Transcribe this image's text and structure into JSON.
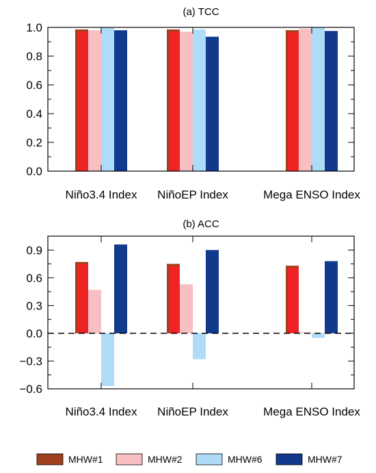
{
  "legend": [
    {
      "name": "MHW#1",
      "color": "#a0401c"
    },
    {
      "name": "MHW#2",
      "color": "#f7bfc2"
    },
    {
      "name": "MHW#6",
      "color": "#aedcf8"
    },
    {
      "name": "MHW#7",
      "color": "#123a8c"
    }
  ],
  "chart_data": [
    {
      "type": "bar",
      "title": "(a) TCC",
      "categories": [
        "Niño3.4 Index",
        "NiñoEP Index",
        "Mega ENSO Index"
      ],
      "ylim": [
        0,
        1.0
      ],
      "yticks": [
        "0.0",
        "0.2",
        "0.4",
        "0.6",
        "0.8",
        "1.0"
      ],
      "ytick_values": [
        0,
        0.2,
        0.4,
        0.6,
        0.8,
        1.0
      ],
      "series": [
        {
          "name": "MHW#1",
          "color": "#a0401c",
          "highlight": "#ee2424",
          "values": [
            0.985,
            0.985,
            0.98
          ]
        },
        {
          "name": "MHW#2",
          "color": "#f7bfc2",
          "values": [
            0.98,
            0.97,
            0.99
          ]
        },
        {
          "name": "MHW#6",
          "color": "#aedcf8",
          "values": [
            1.0,
            0.985,
            1.0
          ]
        },
        {
          "name": "MHW#7",
          "color": "#123a8c",
          "values": [
            0.98,
            0.935,
            0.975
          ]
        }
      ]
    },
    {
      "type": "bar",
      "title": "(b) ACC",
      "categories": [
        "Niño3.4 Index",
        "NiñoEP Index",
        "Mega ENSO Index"
      ],
      "ylim": [
        -0.6,
        1.05
      ],
      "yticks": [
        "-0.6",
        "-0.3",
        "0.0",
        "0.3",
        "0.6",
        "0.9"
      ],
      "ytick_values": [
        -0.6,
        -0.3,
        0.0,
        0.3,
        0.6,
        0.9
      ],
      "series": [
        {
          "name": "MHW#1",
          "color": "#a0401c",
          "highlight": "#ee2424",
          "values": [
            0.77,
            0.75,
            0.73
          ]
        },
        {
          "name": "MHW#2",
          "color": "#f7bfc2",
          "values": [
            0.47,
            0.53,
            0.01
          ]
        },
        {
          "name": "MHW#6",
          "color": "#aedcf8",
          "values": [
            -0.57,
            -0.28,
            -0.05
          ]
        },
        {
          "name": "MHW#7",
          "color": "#123a8c",
          "values": [
            0.96,
            0.9,
            0.78
          ]
        }
      ]
    }
  ]
}
